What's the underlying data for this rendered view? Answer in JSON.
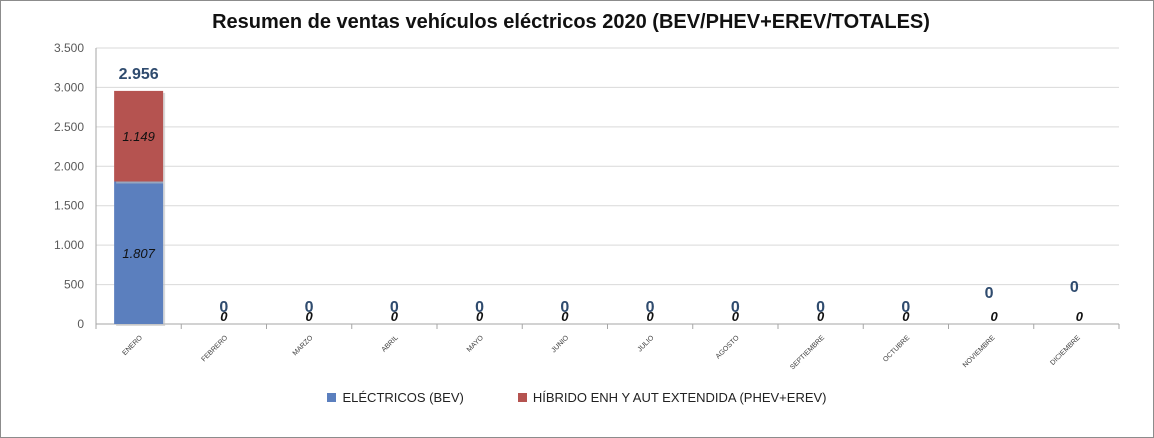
{
  "chart_data": {
    "type": "bar",
    "stacked": true,
    "title": "Resumen de ventas vehículos eléctricos 2020 (BEV/PHEV+EREV/TOTALES)",
    "categories": [
      "ENERO",
      "FEBRERO",
      "MARZO",
      "ABRIL",
      "MAYO",
      "JUNIO",
      "JULIO",
      "AGOSTO",
      "SEPTIEMBRE",
      "OCTUBRE",
      "NOVIEMBRE",
      "DICIEMBRE"
    ],
    "series": [
      {
        "name": "ELÉCTRICOS (BEV)",
        "color": "#5b7fbe",
        "values": [
          1807,
          null,
          null,
          null,
          null,
          null,
          null,
          null,
          null,
          null,
          null,
          null
        ],
        "labels": [
          "1.807",
          "",
          "",
          "",
          "",
          "",
          "",
          "",
          "",
          "",
          "",
          ""
        ]
      },
      {
        "name": "HÍBRIDO ENH Y AUT EXTENDIDA (PHEV+EREV)",
        "color": "#b55350",
        "values": [
          1149,
          0,
          0,
          0,
          0,
          0,
          0,
          0,
          0,
          0,
          0,
          0
        ],
        "labels": [
          "1.149",
          "0",
          "0",
          "0",
          "0",
          "0",
          "0",
          "0",
          "0",
          "0",
          "0",
          "0"
        ]
      }
    ],
    "totals": {
      "values": [
        2956,
        0,
        0,
        0,
        0,
        0,
        0,
        0,
        0,
        0,
        0,
        0
      ],
      "labels": [
        "2.956",
        "0",
        "0",
        "0",
        "0",
        "0",
        "0",
        "0",
        "0",
        "0",
        "0",
        "0"
      ]
    },
    "y_ticks": [
      {
        "value": 0,
        "label": "0"
      },
      {
        "value": 500,
        "label": "500"
      },
      {
        "value": 1000,
        "label": "1.000"
      },
      {
        "value": 1500,
        "label": "1.500"
      },
      {
        "value": 2000,
        "label": "2.000"
      },
      {
        "value": 2500,
        "label": "2.500"
      },
      {
        "value": 3000,
        "label": "3.000"
      },
      {
        "value": 3500,
        "label": "3.500"
      }
    ],
    "ylim": [
      0,
      3500
    ],
    "grid": true,
    "legend_position": "bottom"
  }
}
